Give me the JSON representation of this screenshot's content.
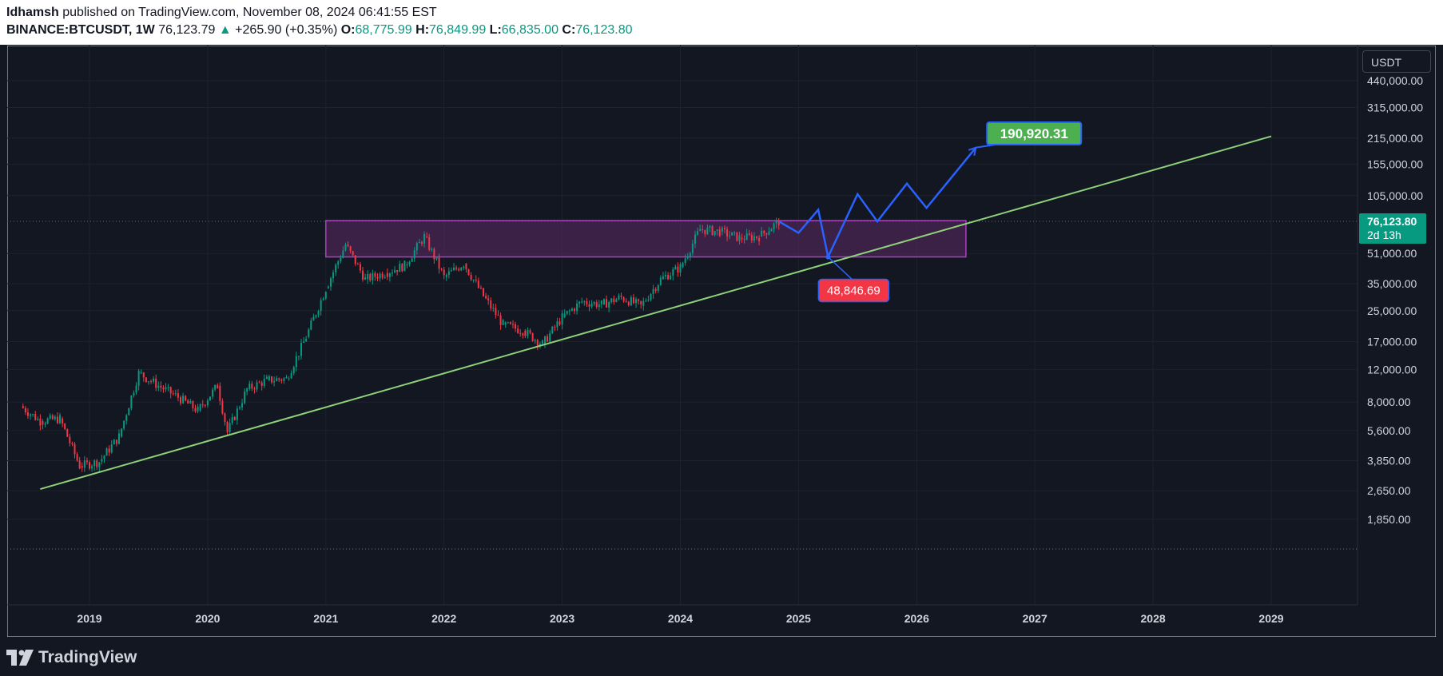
{
  "header": {
    "author": "Idhamsh",
    "published": " published on TradingView.com, November 08, 2024 06:41:55 EST",
    "symbol": "BINANCE:BTCUSDT, 1W",
    "last": "76,123.79",
    "arrow": "▲",
    "change": "+265.90 (+0.35%)",
    "o_label": "O:",
    "o_value": "68,775.99",
    "h_label": "H:",
    "h_value": "76,849.99",
    "l_label": "L:",
    "l_value": "66,835.00",
    "c_label": "C:",
    "c_value": "76,123.80"
  },
  "currency_button": "USDT",
  "footer": {
    "brand": "TradingView"
  },
  "colors": {
    "background": "#131722",
    "grid": "#1e222d",
    "up": "#089981",
    "down": "#f23645",
    "zone_stroke": "#b03ec7",
    "zone_fill": "#5b2a63",
    "trendline": "#8fd17a",
    "projection": "#2962ff",
    "target_label": "#4caf50",
    "support_label": "#f23645",
    "price_label": "#089981"
  },
  "chart_data": {
    "type": "candlestick",
    "y_scale": "log",
    "x_ticks": [
      "2019",
      "2020",
      "2021",
      "2022",
      "2023",
      "2024",
      "2025",
      "2026",
      "2027",
      "2028",
      "2029"
    ],
    "y_ticks": [
      {
        "value": 440000,
        "label": "440,000.00"
      },
      {
        "value": 315000,
        "label": "315,000.00"
      },
      {
        "value": 215000,
        "label": "215,000.00"
      },
      {
        "value": 155000,
        "label": "155,000.00"
      },
      {
        "value": 105000,
        "label": "105,000.00"
      },
      {
        "value": 51000,
        "label": "51,000.00"
      },
      {
        "value": 35000,
        "label": "35,000.00"
      },
      {
        "value": 25000,
        "label": "25,000.00"
      },
      {
        "value": 17000,
        "label": "17,000.00"
      },
      {
        "value": 12000,
        "label": "12,000.00"
      },
      {
        "value": 8000,
        "label": "8,000.00"
      },
      {
        "value": 5600,
        "label": "5,600.00"
      },
      {
        "value": 3850,
        "label": "3,850.00"
      },
      {
        "value": 2650,
        "label": "2,650.00"
      },
      {
        "value": 1850,
        "label": "1,850.00"
      }
    ],
    "price_series": [
      [
        "2018-06",
        7600
      ],
      [
        "2018-08",
        6300
      ],
      [
        "2018-10",
        6500
      ],
      [
        "2018-12",
        3600
      ],
      [
        "2019-02",
        3800
      ],
      [
        "2019-04",
        5200
      ],
      [
        "2019-06",
        11500
      ],
      [
        "2019-08",
        9800
      ],
      [
        "2019-10",
        8500
      ],
      [
        "2019-12",
        7200
      ],
      [
        "2020-02",
        9800
      ],
      [
        "2020-03",
        5500
      ],
      [
        "2020-05",
        9400
      ],
      [
        "2020-07",
        10500
      ],
      [
        "2020-09",
        10700
      ],
      [
        "2020-11",
        18000
      ],
      [
        "2021-01",
        33000
      ],
      [
        "2021-03",
        57000
      ],
      [
        "2021-05",
        37000
      ],
      [
        "2021-07",
        40000
      ],
      [
        "2021-09",
        44000
      ],
      [
        "2021-11",
        63000
      ],
      [
        "2022-01",
        38000
      ],
      [
        "2022-03",
        45000
      ],
      [
        "2022-05",
        30000
      ],
      [
        "2022-07",
        21000
      ],
      [
        "2022-09",
        19500
      ],
      [
        "2022-11",
        16500
      ],
      [
        "2023-01",
        23000
      ],
      [
        "2023-03",
        28000
      ],
      [
        "2023-05",
        27000
      ],
      [
        "2023-07",
        29500
      ],
      [
        "2023-09",
        26500
      ],
      [
        "2023-11",
        37000
      ],
      [
        "2024-01",
        43000
      ],
      [
        "2024-03",
        69000
      ],
      [
        "2024-05",
        67000
      ],
      [
        "2024-07",
        62000
      ],
      [
        "2024-09",
        63000
      ],
      [
        "2024-11",
        76123.8
      ]
    ],
    "zone": {
      "from": "2021-01",
      "to": "2026-06",
      "low": 48846.69,
      "high": 76849.99
    },
    "trendline": {
      "from": [
        "2018-08",
        2700
      ],
      "to": [
        "2029-01",
        220000
      ]
    },
    "projection": [
      [
        "2024-11",
        76123.8
      ],
      [
        "2025-01",
        66000
      ],
      [
        "2025-03",
        88000
      ],
      [
        "2025-04",
        48846.69
      ],
      [
        "2025-07",
        107000
      ],
      [
        "2025-09",
        76000
      ],
      [
        "2025-12",
        122000
      ],
      [
        "2026-02",
        90000
      ],
      [
        "2026-07",
        190920.31
      ]
    ],
    "annotations": {
      "target": "190,920.31",
      "support": "48,846.69",
      "current_price": "76,123.80",
      "countdown": "2d 13h"
    }
  }
}
